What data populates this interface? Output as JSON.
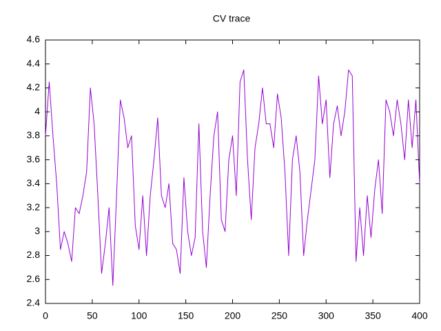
{
  "chart_data": {
    "type": "line",
    "title": "CV trace",
    "x": [
      0,
      4,
      8,
      12,
      16,
      20,
      24,
      28,
      32,
      36,
      40,
      44,
      48,
      52,
      56,
      60,
      64,
      68,
      72,
      76,
      80,
      84,
      88,
      92,
      96,
      100,
      104,
      108,
      112,
      116,
      120,
      124,
      128,
      132,
      136,
      140,
      144,
      148,
      152,
      156,
      160,
      164,
      168,
      172,
      176,
      180,
      184,
      188,
      192,
      196,
      200,
      204,
      208,
      212,
      216,
      220,
      224,
      228,
      232,
      236,
      240,
      244,
      248,
      252,
      256,
      260,
      264,
      268,
      272,
      276,
      280,
      284,
      288,
      292,
      296,
      300,
      304,
      308,
      312,
      316,
      320,
      324,
      328,
      332,
      336,
      340,
      344,
      348,
      352,
      356,
      360,
      364,
      368,
      372,
      376,
      380,
      384,
      388,
      392,
      396,
      400
    ],
    "values": [
      3.8,
      4.25,
      3.8,
      3.4,
      2.85,
      3.0,
      2.9,
      2.75,
      3.2,
      3.15,
      3.3,
      3.5,
      4.2,
      3.9,
      3.3,
      2.65,
      2.9,
      3.2,
      2.55,
      3.3,
      4.1,
      3.95,
      3.7,
      3.8,
      3.05,
      2.85,
      3.3,
      2.8,
      3.3,
      3.6,
      3.95,
      3.3,
      3.2,
      3.4,
      2.9,
      2.85,
      2.65,
      3.45,
      3.0,
      2.8,
      2.95,
      3.9,
      3.0,
      2.7,
      3.3,
      3.8,
      4.0,
      3.1,
      3.0,
      3.6,
      3.8,
      3.3,
      4.25,
      4.35,
      3.6,
      3.1,
      3.7,
      3.9,
      4.2,
      3.9,
      3.9,
      3.7,
      4.15,
      3.95,
      3.5,
      2.8,
      3.6,
      3.8,
      3.5,
      2.8,
      3.1,
      3.35,
      3.6,
      4.3,
      3.9,
      4.1,
      3.45,
      3.9,
      4.05,
      3.8,
      4.0,
      4.35,
      4.3,
      2.75,
      3.2,
      2.8,
      3.3,
      2.95,
      3.35,
      3.6,
      3.15,
      4.1,
      4.0,
      3.8,
      4.1,
      3.9,
      3.6,
      4.1,
      3.7,
      4.1,
      3.4
    ],
    "color": "#9400d3",
    "xlim": [
      0,
      400
    ],
    "xticks": [
      0,
      50,
      100,
      150,
      200,
      250,
      300,
      350,
      400
    ],
    "ylim": [
      2.4,
      4.6
    ],
    "yticks": [
      2.4,
      2.6,
      2.8,
      3,
      3.2,
      3.4,
      3.6,
      3.8,
      4,
      4.2,
      4.4,
      4.6
    ],
    "grid": false
  }
}
